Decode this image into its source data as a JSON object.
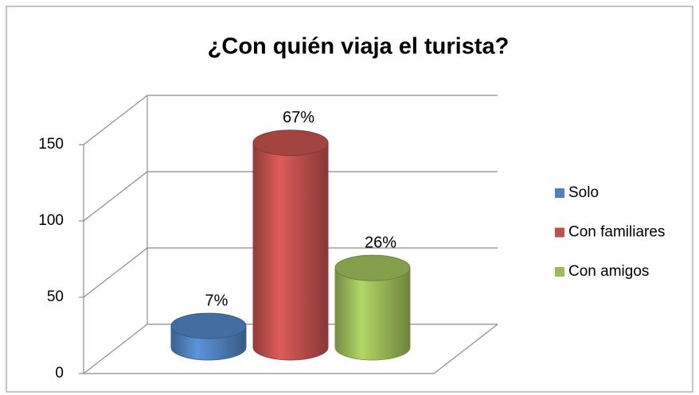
{
  "chart_data": {
    "type": "bar3d",
    "title": "¿Con quién viaja el turista?",
    "categories": [
      "Solo",
      "Con familiares",
      "Con amigos"
    ],
    "values": [
      14,
      134,
      52
    ],
    "value_labels": [
      "7%",
      "67%",
      "26%"
    ],
    "colors": [
      "#4f81bd",
      "#c0504d",
      "#9bbb59"
    ],
    "ylim": [
      0,
      150
    ],
    "yticks": [
      0,
      50,
      100,
      150
    ],
    "grid": true,
    "legend": "right"
  }
}
